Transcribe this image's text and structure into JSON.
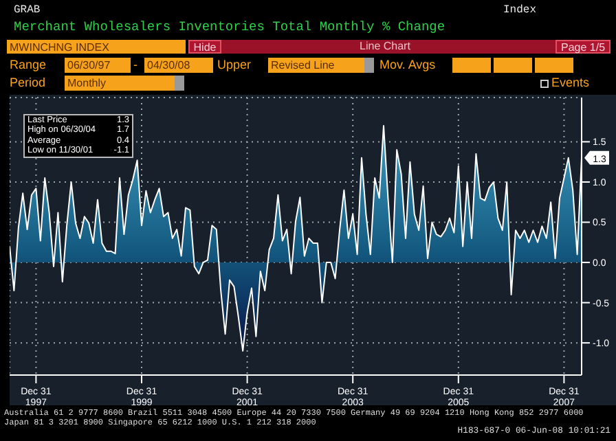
{
  "chart_data": {
    "type": "area",
    "title": "Merchant Wholesalers Inventories Total Monthly % Change",
    "x": [
      "1997-06",
      "1997-07",
      "1997-08",
      "1997-09",
      "1997-10",
      "1997-11",
      "1997-12",
      "1998-01",
      "1998-02",
      "1998-03",
      "1998-04",
      "1998-05",
      "1998-06",
      "1998-07",
      "1998-08",
      "1998-09",
      "1998-10",
      "1998-11",
      "1998-12",
      "1999-01",
      "1999-02",
      "1999-03",
      "1999-04",
      "1999-05",
      "1999-06",
      "1999-07",
      "1999-08",
      "1999-09",
      "1999-10",
      "1999-11",
      "1999-12",
      "2000-01",
      "2000-02",
      "2000-03",
      "2000-04",
      "2000-05",
      "2000-06",
      "2000-07",
      "2000-08",
      "2000-09",
      "2000-10",
      "2000-11",
      "2000-12",
      "2001-01",
      "2001-02",
      "2001-03",
      "2001-04",
      "2001-05",
      "2001-06",
      "2001-07",
      "2001-08",
      "2001-09",
      "2001-10",
      "2001-11",
      "2001-12",
      "2002-01",
      "2002-02",
      "2002-03",
      "2002-04",
      "2002-05",
      "2002-06",
      "2002-07",
      "2002-08",
      "2002-09",
      "2002-10",
      "2002-11",
      "2002-12",
      "2003-01",
      "2003-02",
      "2003-03",
      "2003-04",
      "2003-05",
      "2003-06",
      "2003-07",
      "2003-08",
      "2003-09",
      "2003-10",
      "2003-11",
      "2003-12",
      "2004-01",
      "2004-02",
      "2004-03",
      "2004-04",
      "2004-05",
      "2004-06",
      "2004-07",
      "2004-08",
      "2004-09",
      "2004-10",
      "2004-11",
      "2004-12",
      "2005-01",
      "2005-02",
      "2005-03",
      "2005-04",
      "2005-05",
      "2005-06",
      "2005-07",
      "2005-08",
      "2005-09",
      "2005-10",
      "2005-11",
      "2005-12",
      "2006-01",
      "2006-02",
      "2006-03",
      "2006-04",
      "2006-05",
      "2006-06",
      "2006-07",
      "2006-08",
      "2006-09",
      "2006-10",
      "2006-11",
      "2006-12",
      "2007-01",
      "2007-02",
      "2007-03",
      "2007-04",
      "2007-05",
      "2007-06",
      "2007-07",
      "2007-08",
      "2007-09",
      "2007-10",
      "2007-11",
      "2007-12",
      "2008-01",
      "2008-02",
      "2008-03",
      "2008-04"
    ],
    "series": [
      {
        "color": "#ffffff",
        "values": [
          0.2,
          -0.35,
          0.43,
          0.86,
          0.41,
          0.84,
          0.92,
          0.27,
          1.05,
          0.62,
          -0.05,
          0.62,
          -0.24,
          0.46,
          1.0,
          0.49,
          0.3,
          0.57,
          0.49,
          0.24,
          0.78,
          0.24,
          0.14,
          0.14,
          0.11,
          1.05,
          0.35,
          0.84,
          1.03,
          1.27,
          0.46,
          0.89,
          0.62,
          0.78,
          0.92,
          0.57,
          0.62,
          0.3,
          0.41,
          0.08,
          0.68,
          0.65,
          -0.05,
          -0.14,
          0.0,
          0.03,
          0.46,
          0.41,
          -0.35,
          -0.89,
          -0.22,
          -0.3,
          -0.68,
          -1.1,
          -0.62,
          -0.32,
          -0.92,
          -0.11,
          -0.35,
          0.16,
          0.3,
          0.84,
          0.27,
          0.41,
          -0.14,
          0.51,
          0.81,
          0.08,
          0.3,
          0.24,
          0.24,
          -0.5,
          0.0,
          0.0,
          -0.2,
          0.4,
          0.9,
          0.3,
          0.6,
          0.1,
          1.3,
          0.6,
          0.1,
          1.05,
          0.8,
          1.7,
          0.8,
          0.0,
          1.4,
          1.1,
          0.3,
          1.25,
          0.6,
          0.4,
          0.95,
          0.05,
          0.5,
          0.35,
          0.32,
          0.4,
          0.55,
          0.37,
          1.2,
          0.2,
          1.0,
          0.3,
          1.35,
          0.8,
          0.77,
          0.93,
          1.0,
          0.55,
          0.4,
          1.0,
          -0.4,
          0.4,
          0.3,
          0.4,
          0.25,
          0.4,
          0.25,
          0.45,
          0.3,
          0.75,
          0.05,
          0.8,
          1.05,
          1.3,
          0.9,
          0.1,
          1.3
        ]
      }
    ],
    "xlim": [
      "1997-06",
      "2008-04"
    ],
    "xticks": [
      {
        "value": "1997-12",
        "label": "Dec 31\n1997"
      },
      {
        "value": "1999-12",
        "label": "Dec 31\n1999"
      },
      {
        "value": "2001-12",
        "label": "Dec 31\n2001"
      },
      {
        "value": "2003-12",
        "label": "Dec 31\n2003"
      },
      {
        "value": "2005-12",
        "label": "Dec 31\n2005"
      },
      {
        "value": "2007-12",
        "label": "Dec 31\n2007"
      }
    ],
    "ylim": [
      -1.4,
      2.05
    ],
    "yticks": [
      {
        "value": -1,
        "label": "-1.0"
      },
      {
        "value": -0.5,
        "label": "-0.5"
      },
      {
        "value": 0,
        "label": "0.0"
      },
      {
        "value": 0.5,
        "label": "0.5"
      },
      {
        "value": 1,
        "label": "1.0"
      },
      {
        "value": 1.5,
        "label": "1.5"
      }
    ],
    "grid": true,
    "annotations": [
      "GRAB",
      "Index",
      "MWINCHNG INDEX",
      "Hide",
      "Line Chart",
      "Page 1/5",
      "Range",
      "06/30/97",
      "-",
      "04/30/08",
      "Upper",
      "Revised Line",
      "Mov. Avgs",
      "Period",
      "Monthly",
      "Events",
      "Last Price",
      "1.3",
      "High on 06/30/04",
      "1.7",
      "Average",
      "0.4",
      "Low on 11/30/01",
      "-1.1",
      "Australia 61 2 9777 8600 Brazil 5511 3048 4500 Europe 44 20 7330 7500 Germany 49 69 9204 1210 Hong Kong 852 2977 6000",
      "Japan 81 3 3201 8900 Singapore 65 6212 1000 U.S. 1 212 318 2000",
      "H183-687-0 06-Jun-08 10:01:21",
      {
        "text": "1.3",
        "x": "2008-04",
        "y": 1.3
      }
    ]
  }
}
